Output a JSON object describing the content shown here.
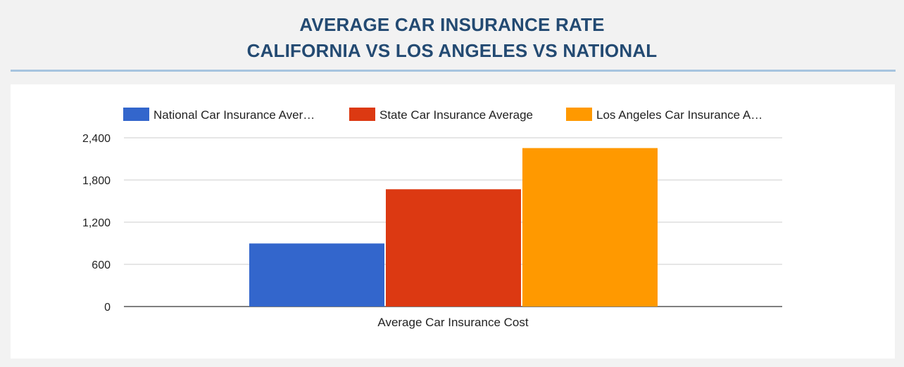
{
  "header": {
    "title_line1": "AVERAGE CAR INSURANCE RATE",
    "title_line2": "CALIFORNIA VS LOS ANGELES VS NATIONAL"
  },
  "colors": {
    "title": "#234a72",
    "divider": "#a7c4df",
    "page_background": "#f2f2f2",
    "card_background": "#ffffff",
    "gridline": "#cccccc",
    "baseline": "#333333"
  },
  "chart_data": {
    "type": "bar",
    "categories": [
      "Average Car Insurance Cost"
    ],
    "xlabel": "Average Car Insurance Cost",
    "ylabel": "",
    "ylim": [
      0,
      2400
    ],
    "yticks": [
      0,
      600,
      1200,
      1800,
      2400
    ],
    "ytick_labels": [
      "0",
      "600",
      "1,200",
      "1,800",
      "2,400"
    ],
    "grid": true,
    "legend_position": "top",
    "series": [
      {
        "name": "National Car Insurance Aver…",
        "values": [
          897
        ],
        "color": "#3366cc"
      },
      {
        "name": "State Car Insurance Average",
        "values": [
          1668
        ],
        "color": "#dc3912"
      },
      {
        "name": "Los Angeles Car Insurance A…",
        "values": [
          2254
        ],
        "color": "#ff9900"
      }
    ]
  }
}
